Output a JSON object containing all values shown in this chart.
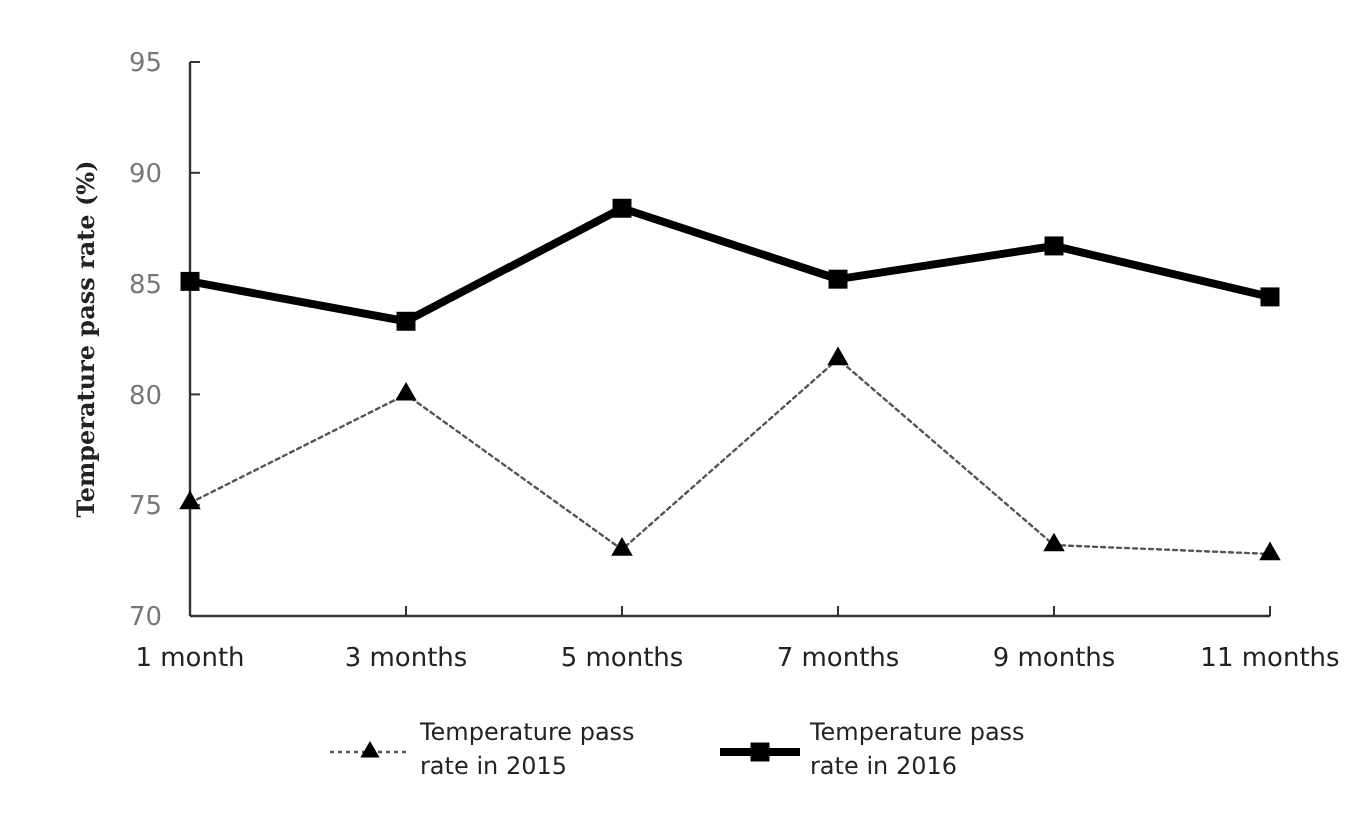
{
  "chart_data": {
    "type": "line",
    "ylabel": "Temperature pass rate (%)",
    "categories": [
      "1 month",
      "3 months",
      "5 months",
      "7 months",
      "9 months",
      "11 months"
    ],
    "ylim": [
      70,
      95
    ],
    "yticks": [
      70,
      75,
      80,
      85,
      90,
      95
    ],
    "grid": false,
    "legend": "bottom",
    "series": [
      {
        "name": "Temperature pass rate in 2015",
        "color": "#555555",
        "marker": "triangle",
        "line_style": "dotted",
        "values": [
          75.1,
          80.0,
          73.0,
          81.6,
          73.2,
          72.8
        ]
      },
      {
        "name": "Temperature pass rate in 2016",
        "color": "#000000",
        "marker": "square",
        "line_style": "solid",
        "values": [
          85.1,
          83.3,
          88.4,
          85.2,
          86.7,
          84.4
        ]
      }
    ]
  }
}
